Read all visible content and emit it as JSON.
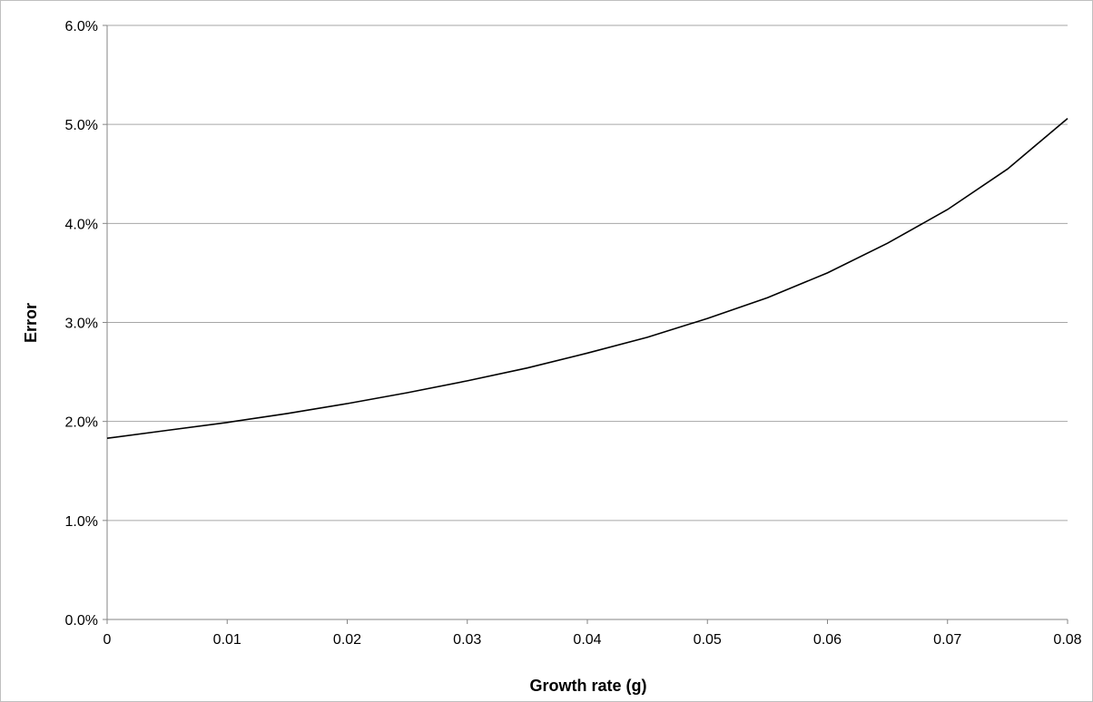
{
  "chart_data": {
    "type": "line",
    "title": "",
    "xlabel": "Growth rate (g)",
    "ylabel": "Error",
    "xlim": [
      0,
      0.08
    ],
    "ylim": [
      0,
      0.06
    ],
    "x_ticks": [
      "0",
      "0.01",
      "0.02",
      "0.03",
      "0.04",
      "0.05",
      "0.06",
      "0.07",
      "0.08"
    ],
    "y_ticks": [
      "0.0%",
      "1.0%",
      "2.0%",
      "3.0%",
      "4.0%",
      "5.0%",
      "6.0%"
    ],
    "grid": true,
    "legend": "none",
    "series": [
      {
        "color": "#000000",
        "x": [
          0,
          0.005,
          0.01,
          0.015,
          0.02,
          0.025,
          0.03,
          0.035,
          0.04,
          0.045,
          0.05,
          0.055,
          0.06,
          0.065,
          0.07,
          0.075,
          0.08
        ],
        "y": [
          0.0183,
          0.0191,
          0.0199,
          0.0208,
          0.0218,
          0.0229,
          0.0241,
          0.0254,
          0.0269,
          0.0285,
          0.0304,
          0.0325,
          0.035,
          0.038,
          0.0414,
          0.0455,
          0.0506
        ]
      }
    ]
  }
}
